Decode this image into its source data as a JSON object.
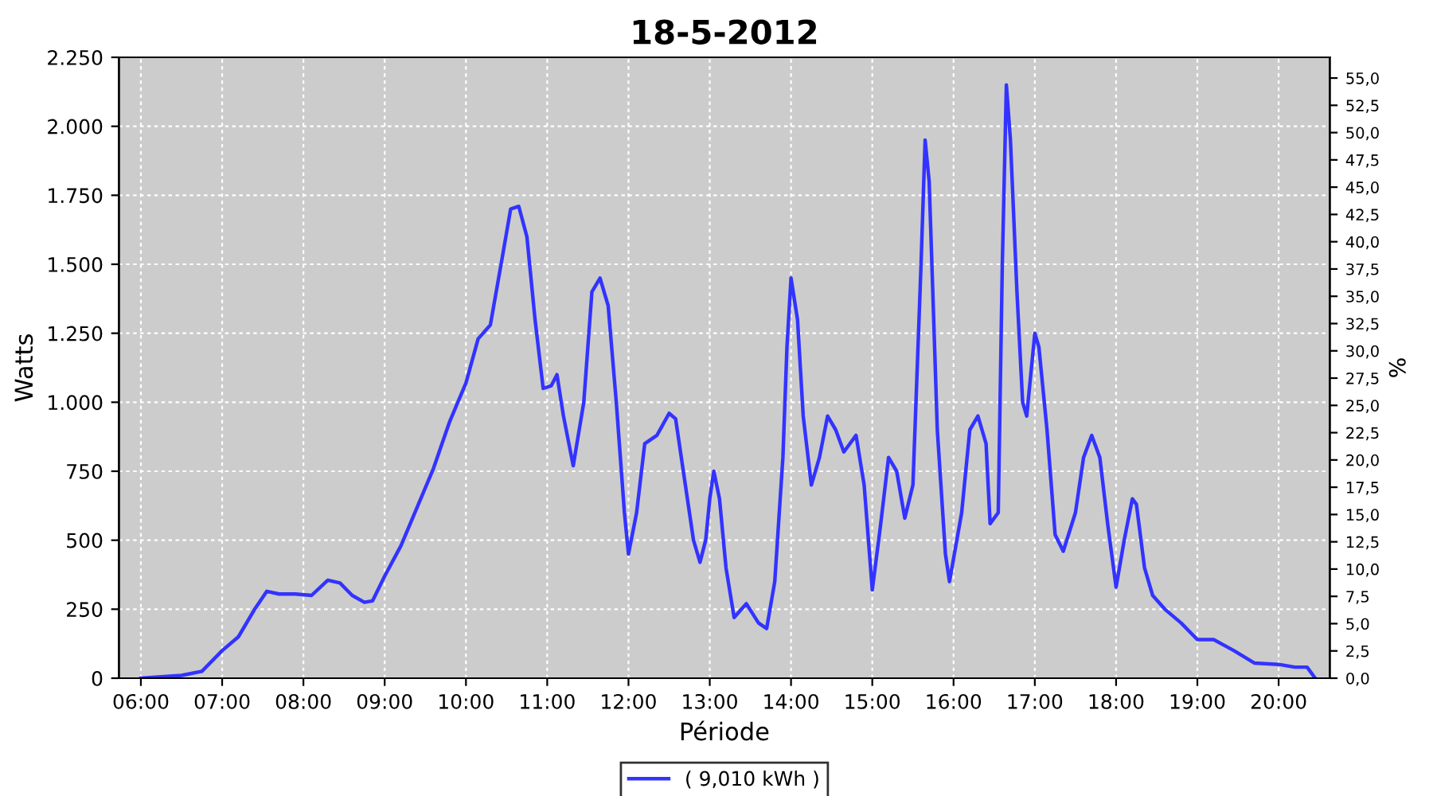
{
  "chart_data": {
    "type": "line",
    "title": "18-5-2012",
    "xlabel": "Période",
    "ylabel": "Watts",
    "y2label": "%",
    "xlim": [
      5.73,
      20.63
    ],
    "ylim": [
      0,
      2250
    ],
    "y2lim": [
      0,
      56.9
    ],
    "xticks": [
      {
        "value": 6,
        "label": "06:00"
      },
      {
        "value": 7,
        "label": "07:00"
      },
      {
        "value": 8,
        "label": "08:00"
      },
      {
        "value": 9,
        "label": "09:00"
      },
      {
        "value": 10,
        "label": "10:00"
      },
      {
        "value": 11,
        "label": "11:00"
      },
      {
        "value": 12,
        "label": "12:00"
      },
      {
        "value": 13,
        "label": "13:00"
      },
      {
        "value": 14,
        "label": "14:00"
      },
      {
        "value": 15,
        "label": "15:00"
      },
      {
        "value": 16,
        "label": "16:00"
      },
      {
        "value": 17,
        "label": "17:00"
      },
      {
        "value": 18,
        "label": "18:00"
      },
      {
        "value": 19,
        "label": "19:00"
      },
      {
        "value": 20,
        "label": "20:00"
      }
    ],
    "yticks": [
      {
        "value": 0,
        "label": "0"
      },
      {
        "value": 250,
        "label": "250"
      },
      {
        "value": 500,
        "label": "500"
      },
      {
        "value": 750,
        "label": "750"
      },
      {
        "value": 1000,
        "label": "1.000"
      },
      {
        "value": 1250,
        "label": "1.250"
      },
      {
        "value": 1500,
        "label": "1.500"
      },
      {
        "value": 1750,
        "label": "1.750"
      },
      {
        "value": 2000,
        "label": "2.000"
      },
      {
        "value": 2250,
        "label": "2.250"
      }
    ],
    "y2ticks": [
      {
        "value": 0,
        "label": "0,0"
      },
      {
        "value": 2.5,
        "label": "2,5"
      },
      {
        "value": 5,
        "label": "5,0"
      },
      {
        "value": 7.5,
        "label": "7,5"
      },
      {
        "value": 10,
        "label": "10,0"
      },
      {
        "value": 12.5,
        "label": "12,5"
      },
      {
        "value": 15,
        "label": "15,0"
      },
      {
        "value": 17.5,
        "label": "17,5"
      },
      {
        "value": 20,
        "label": "20,0"
      },
      {
        "value": 22.5,
        "label": "22,5"
      },
      {
        "value": 25,
        "label": "25,0"
      },
      {
        "value": 27.5,
        "label": "27,5"
      },
      {
        "value": 30,
        "label": "30,0"
      },
      {
        "value": 32.5,
        "label": "32,5"
      },
      {
        "value": 35,
        "label": "35,0"
      },
      {
        "value": 37.5,
        "label": "37,5"
      },
      {
        "value": 40,
        "label": "40,0"
      },
      {
        "value": 42.5,
        "label": "42,5"
      },
      {
        "value": 45,
        "label": "45,0"
      },
      {
        "value": 47.5,
        "label": "47,5"
      },
      {
        "value": 50,
        "label": "50,0"
      },
      {
        "value": 52.5,
        "label": "52,5"
      },
      {
        "value": 55,
        "label": "55,0"
      }
    ],
    "grid": true,
    "legend": "bottom",
    "marker": "none",
    "line_style": "solid",
    "series": [
      {
        "name": "( 9,010 kWh )",
        "color": "#3333ff",
        "x": [
          6.0,
          6.5,
          6.75,
          7.0,
          7.2,
          7.4,
          7.55,
          7.7,
          7.9,
          8.1,
          8.3,
          8.45,
          8.6,
          8.75,
          8.85,
          9.0,
          9.2,
          9.4,
          9.6,
          9.8,
          10.0,
          10.15,
          10.3,
          10.45,
          10.55,
          10.65,
          10.75,
          10.85,
          10.95,
          11.05,
          11.12,
          11.2,
          11.32,
          11.45,
          11.55,
          11.65,
          11.75,
          11.85,
          11.95,
          12.0,
          12.1,
          12.2,
          12.35,
          12.5,
          12.58,
          12.7,
          12.8,
          12.88,
          12.95,
          13.0,
          13.05,
          13.12,
          13.2,
          13.3,
          13.45,
          13.6,
          13.7,
          13.8,
          13.9,
          13.95,
          14.0,
          14.08,
          14.15,
          14.25,
          14.35,
          14.45,
          14.55,
          14.65,
          14.8,
          14.9,
          15.0,
          15.1,
          15.2,
          15.3,
          15.4,
          15.5,
          15.6,
          15.65,
          15.7,
          15.8,
          15.9,
          15.95,
          16.1,
          16.2,
          16.3,
          16.4,
          16.45,
          16.55,
          16.6,
          16.65,
          16.7,
          16.78,
          16.85,
          16.9,
          16.95,
          17.0,
          17.05,
          17.15,
          17.25,
          17.35,
          17.5,
          17.6,
          17.7,
          17.8,
          17.9,
          18.0,
          18.1,
          18.2,
          18.25,
          18.35,
          18.45,
          18.6,
          18.8,
          19.0,
          19.2,
          19.45,
          19.7,
          20.0,
          20.2,
          20.35,
          20.45
        ],
        "values": [
          0,
          10,
          25,
          100,
          150,
          250,
          315,
          305,
          305,
          300,
          355,
          345,
          300,
          275,
          280,
          370,
          480,
          620,
          760,
          930,
          1070,
          1230,
          1280,
          1530,
          1700,
          1710,
          1600,
          1300,
          1050,
          1060,
          1100,
          950,
          770,
          1000,
          1400,
          1450,
          1350,
          1000,
          600,
          450,
          600,
          850,
          880,
          960,
          940,
          700,
          500,
          420,
          500,
          650,
          750,
          650,
          400,
          220,
          270,
          200,
          180,
          350,
          800,
          1200,
          1450,
          1300,
          950,
          700,
          800,
          950,
          900,
          820,
          880,
          700,
          320,
          550,
          800,
          750,
          580,
          700,
          1500,
          1950,
          1800,
          900,
          450,
          350,
          600,
          900,
          950,
          850,
          560,
          600,
          1500,
          2150,
          1950,
          1400,
          1000,
          950,
          1100,
          1250,
          1200,
          900,
          520,
          460,
          600,
          800,
          880,
          800,
          550,
          330,
          500,
          650,
          630,
          400,
          300,
          250,
          200,
          140,
          140,
          100,
          55,
          50,
          40,
          40,
          0
        ]
      }
    ]
  }
}
